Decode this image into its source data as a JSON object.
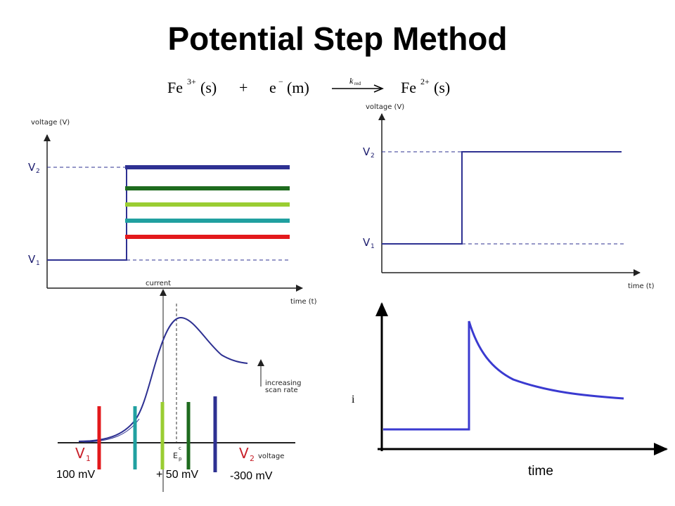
{
  "title": "Potential Step Method",
  "equation": {
    "reactant": "Fe",
    "reactant_charge": "3+",
    "reactant_phase": "(s)",
    "plus": "+",
    "electron": "e",
    "electron_charge": "−",
    "electron_phase": "(m)",
    "rate_k": "k",
    "rate_sub": "red",
    "product": "Fe",
    "product_charge": "2+",
    "product_phase": "(s)"
  },
  "top_left_panel": {
    "y_axis_label": "voltage (V)",
    "x_axis_label": "time (t)",
    "v2_label": "V",
    "v2_sub": "2",
    "v1_label": "V",
    "v1_sub": "1",
    "step_levels": [
      {
        "color": "#2e3192"
      },
      {
        "color": "#1e6b1e"
      },
      {
        "color": "#9acd32"
      },
      {
        "color": "#20a0a0"
      },
      {
        "color": "#e3191c"
      }
    ]
  },
  "top_right_panel": {
    "y_axis_label": "voltage (V)",
    "x_axis_label": "time (t)",
    "v2_label": "V",
    "v2_sub": "2",
    "v1_label": "V",
    "v1_sub": "1"
  },
  "bottom_left_panel": {
    "y_axis_label": "current",
    "x_axis_label": "voltage",
    "annotation_line1": "increasing",
    "annotation_line2": "scan rate",
    "v1_label": "V",
    "v1_sub": "1",
    "v2_label": "V",
    "v2_sub": "2",
    "ep_label": "E",
    "ep_sub": "p",
    "ep_sup": "c",
    "marker_colors": [
      "#e3191c",
      "#20a0a0",
      "#9acd32",
      "#1e6b1e",
      "#2e3192"
    ],
    "mv_labels": [
      "100 mV",
      "+ 50 mV",
      "-300 mV"
    ]
  },
  "bottom_right_panel": {
    "y_axis_label": "i",
    "x_axis_label": "time"
  }
}
